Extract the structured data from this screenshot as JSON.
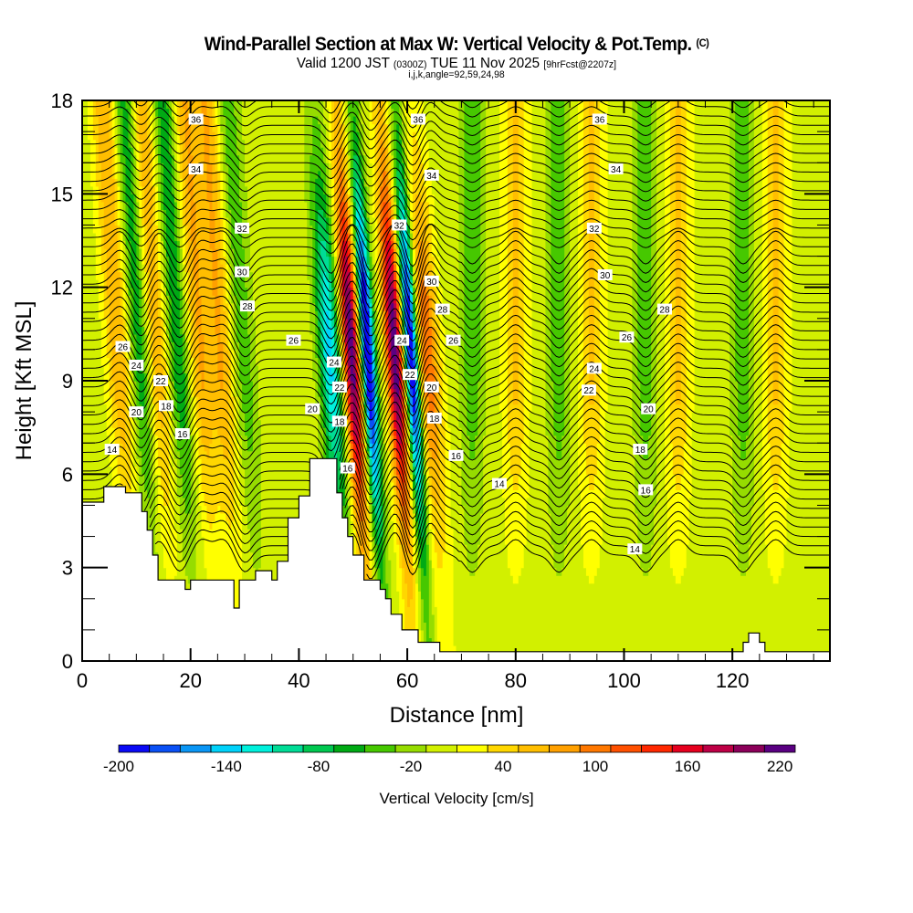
{
  "header": {
    "title": "Wind-Parallel Section at Max W: Vertical Velocity & Pot.Temp.",
    "title_mark": "(C)",
    "valid_prefix": "Valid 1200 JST",
    "valid_utc": "(0300Z)",
    "valid_date": "TUE 11 Nov 2025",
    "forecast": "[9hrFcst@2207z]",
    "grid_info": "i,j,k,angle=92,59,24,98"
  },
  "chart_data": {
    "type": "heatmap",
    "title": "Wind-Parallel Section at Max W: Vertical Velocity & Pot.Temp.",
    "xlabel": "Distance [nm]",
    "ylabel": "Height [Kft MSL]",
    "xlim": [
      0,
      138
    ],
    "ylim": [
      0,
      18
    ],
    "x_ticks": [
      0,
      20,
      40,
      60,
      80,
      100,
      120
    ],
    "y_ticks": [
      0,
      3,
      6,
      9,
      12,
      15,
      18
    ],
    "grid": false,
    "fill_variable": "Vertical Velocity [cm/s]",
    "contour_variable": "Potential Temperature",
    "colorbar": {
      "title": "Vertical Velocity [cm/s]",
      "placement": "bottom",
      "levels": [
        -200,
        -180,
        -160,
        -140,
        -120,
        -100,
        -80,
        -60,
        -40,
        -20,
        0,
        20,
        40,
        60,
        80,
        100,
        120,
        140,
        160,
        180,
        200,
        220,
        240
      ],
      "tick_labels": [
        "-200",
        "-140",
        "-80",
        "-20",
        "40",
        "100",
        "160",
        "220"
      ],
      "tick_values": [
        -200,
        -140,
        -80,
        -20,
        40,
        100,
        160,
        220
      ],
      "colors": [
        "#0a0af5",
        "#0a50f5",
        "#0a96f5",
        "#00d2fa",
        "#00f0dc",
        "#00dc96",
        "#00c850",
        "#00aa14",
        "#46c800",
        "#96dc00",
        "#d2f000",
        "#ffff00",
        "#ffd700",
        "#ffbe00",
        "#ffa000",
        "#ff7800",
        "#ff5000",
        "#ff2800",
        "#e6001e",
        "#be0046",
        "#8c005a",
        "#5a0082"
      ]
    },
    "contour_labels": [
      {
        "value": 36,
        "x": 21,
        "y": 17.4
      },
      {
        "value": 34,
        "x": 21,
        "y": 15.8
      },
      {
        "value": 32,
        "x": 29.5,
        "y": 13.9
      },
      {
        "value": 30,
        "x": 29.5,
        "y": 12.5
      },
      {
        "value": 28,
        "x": 30.5,
        "y": 11.4
      },
      {
        "value": 26,
        "x": 7.5,
        "y": 10.1
      },
      {
        "value": 26,
        "x": 39,
        "y": 10.3
      },
      {
        "value": 24,
        "x": 10,
        "y": 9.5
      },
      {
        "value": 24,
        "x": 46.5,
        "y": 9.6
      },
      {
        "value": 22,
        "x": 14.5,
        "y": 9.0
      },
      {
        "value": 22,
        "x": 47.5,
        "y": 8.8
      },
      {
        "value": 20,
        "x": 10,
        "y": 8.0
      },
      {
        "value": 20,
        "x": 42.5,
        "y": 8.1
      },
      {
        "value": 18,
        "x": 15.5,
        "y": 8.2
      },
      {
        "value": 18,
        "x": 47.5,
        "y": 7.7
      },
      {
        "value": 16,
        "x": 18.5,
        "y": 7.3
      },
      {
        "value": 16,
        "x": 49,
        "y": 6.2
      },
      {
        "value": 14,
        "x": 5.5,
        "y": 6.8
      },
      {
        "value": 36,
        "x": 62,
        "y": 17.4
      },
      {
        "value": 34,
        "x": 64.5,
        "y": 15.6
      },
      {
        "value": 32,
        "x": 58.5,
        "y": 14.0
      },
      {
        "value": 30,
        "x": 64.5,
        "y": 12.2
      },
      {
        "value": 28,
        "x": 66.5,
        "y": 11.3
      },
      {
        "value": 26,
        "x": 68.5,
        "y": 10.3
      },
      {
        "value": 24,
        "x": 59,
        "y": 10.3
      },
      {
        "value": 22,
        "x": 60.5,
        "y": 9.2
      },
      {
        "value": 20,
        "x": 64.5,
        "y": 8.8
      },
      {
        "value": 18,
        "x": 65,
        "y": 7.8
      },
      {
        "value": 16,
        "x": 69,
        "y": 6.6
      },
      {
        "value": 14,
        "x": 77,
        "y": 5.7
      },
      {
        "value": 36,
        "x": 95.5,
        "y": 17.4
      },
      {
        "value": 34,
        "x": 98.5,
        "y": 15.8
      },
      {
        "value": 32,
        "x": 94.5,
        "y": 13.9
      },
      {
        "value": 30,
        "x": 96.5,
        "y": 12.4
      },
      {
        "value": 28,
        "x": 107.5,
        "y": 11.3
      },
      {
        "value": 26,
        "x": 100.5,
        "y": 10.4
      },
      {
        "value": 24,
        "x": 94.5,
        "y": 9.4
      },
      {
        "value": 22,
        "x": 93.5,
        "y": 8.7
      },
      {
        "value": 20,
        "x": 104.5,
        "y": 8.1
      },
      {
        "value": 18,
        "x": 103,
        "y": 6.8
      },
      {
        "value": 16,
        "x": 104,
        "y": 5.5
      },
      {
        "value": 14,
        "x": 102,
        "y": 3.6
      }
    ],
    "updraft_bands_nm": [
      7,
      14,
      22,
      26,
      50,
      58,
      64,
      80,
      94,
      110,
      128
    ],
    "downdraft_bands_nm": [
      11,
      18,
      30,
      46,
      53,
      61,
      72,
      88,
      104,
      122
    ],
    "peak_updraft_cm_s": 220,
    "peak_downdraft_cm_s": -200,
    "terrain_kft": [
      [
        0,
        5.1
      ],
      [
        4,
        5.1
      ],
      [
        4,
        5.6
      ],
      [
        8,
        5.6
      ],
      [
        8,
        5.4
      ],
      [
        11,
        5.4
      ],
      [
        11,
        4.8
      ],
      [
        12,
        4.8
      ],
      [
        12,
        4.2
      ],
      [
        13,
        4.2
      ],
      [
        13,
        3.4
      ],
      [
        14,
        3.4
      ],
      [
        14,
        2.6
      ],
      [
        19,
        2.6
      ],
      [
        19,
        2.3
      ],
      [
        20,
        2.3
      ],
      [
        20,
        2.6
      ],
      [
        25,
        2.6
      ],
      [
        25,
        2.6
      ],
      [
        28,
        2.6
      ],
      [
        28,
        1.7
      ],
      [
        29,
        1.7
      ],
      [
        29,
        2.6
      ],
      [
        32,
        2.6
      ],
      [
        32,
        2.9
      ],
      [
        35,
        2.9
      ],
      [
        35,
        2.6
      ],
      [
        36,
        2.6
      ],
      [
        36,
        3.2
      ],
      [
        38,
        3.2
      ],
      [
        38,
        4.6
      ],
      [
        40,
        4.6
      ],
      [
        40,
        5.3
      ],
      [
        42,
        5.3
      ],
      [
        42,
        6.5
      ],
      [
        47,
        6.5
      ],
      [
        47,
        5.4
      ],
      [
        48,
        5.4
      ],
      [
        48,
        4.6
      ],
      [
        49,
        4.6
      ],
      [
        49,
        4.0
      ],
      [
        50,
        4.0
      ],
      [
        50,
        3.4
      ],
      [
        52,
        3.4
      ],
      [
        52,
        2.6
      ],
      [
        55,
        2.6
      ],
      [
        55,
        2.3
      ],
      [
        56,
        2.3
      ],
      [
        56,
        2.0
      ],
      [
        57,
        2.0
      ],
      [
        57,
        1.5
      ],
      [
        59,
        1.5
      ],
      [
        59,
        1.0
      ],
      [
        62,
        1.0
      ],
      [
        62,
        0.6
      ],
      [
        66,
        0.6
      ],
      [
        66,
        0.3
      ],
      [
        122,
        0.3
      ],
      [
        122,
        0.6
      ],
      [
        123,
        0.6
      ],
      [
        123,
        0.9
      ],
      [
        125,
        0.9
      ],
      [
        125,
        0.6
      ],
      [
        126,
        0.6
      ],
      [
        126,
        0.3
      ],
      [
        138,
        0.3
      ]
    ]
  },
  "colors": {
    "frame": "#000000",
    "terrain": "#ffffff",
    "contour": "#000000"
  }
}
